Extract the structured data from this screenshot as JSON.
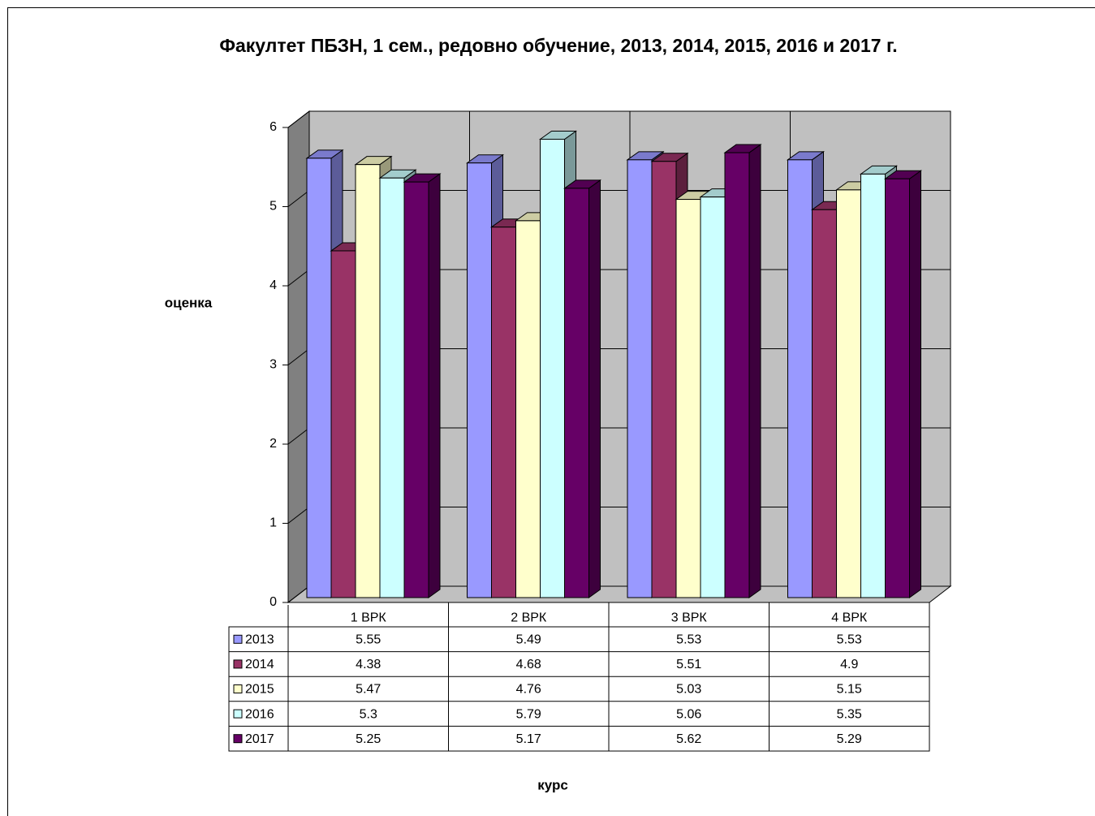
{
  "chart_data": {
    "type": "bar3d",
    "title": "Факултет ПБЗН, 1 сем., редовно обучение, 2013, 2014, 2015, 2016 и 2017 г.",
    "y_label": "оценка",
    "x_label": "курс",
    "categories": [
      "1 ВРК",
      "2 ВРК",
      "3 ВРК",
      "4 ВРК"
    ],
    "series": [
      {
        "name": "2013",
        "color": "#9999ff",
        "values": [
          5.55,
          5.49,
          5.53,
          5.53
        ]
      },
      {
        "name": "2014",
        "color": "#993366",
        "values": [
          4.38,
          4.68,
          5.51,
          4.9
        ]
      },
      {
        "name": "2015",
        "color": "#ffffcc",
        "values": [
          5.47,
          4.76,
          5.03,
          5.15
        ]
      },
      {
        "name": "2016",
        "color": "#ccffff",
        "values": [
          5.3,
          5.79,
          5.06,
          5.35
        ]
      },
      {
        "name": "2017",
        "color": "#660066",
        "values": [
          5.25,
          5.17,
          5.62,
          5.29
        ]
      }
    ],
    "ylim": [
      0,
      6
    ],
    "yticks": [
      0,
      1,
      2,
      3,
      4,
      5,
      6
    ],
    "grid": true
  }
}
